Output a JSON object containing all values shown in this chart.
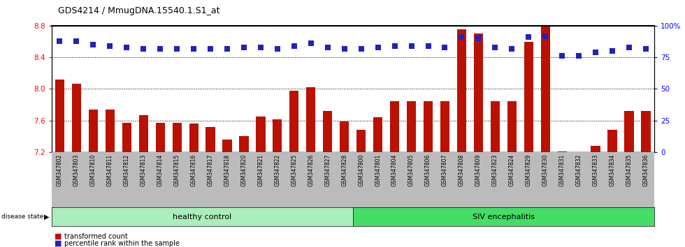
{
  "title": "GDS4214 / MmugDNA.15540.1.S1_at",
  "samples": [
    "GSM347802",
    "GSM347803",
    "GSM347810",
    "GSM347811",
    "GSM347812",
    "GSM347813",
    "GSM347814",
    "GSM347815",
    "GSM347816",
    "GSM347817",
    "GSM347818",
    "GSM347820",
    "GSM347821",
    "GSM347822",
    "GSM347825",
    "GSM347826",
    "GSM347827",
    "GSM347828",
    "GSM347800",
    "GSM347801",
    "GSM347804",
    "GSM347805",
    "GSM347806",
    "GSM347807",
    "GSM347808",
    "GSM347809",
    "GSM347823",
    "GSM347824",
    "GSM347829",
    "GSM347830",
    "GSM347831",
    "GSM347832",
    "GSM347833",
    "GSM347834",
    "GSM347835",
    "GSM347836"
  ],
  "bar_values": [
    8.12,
    8.07,
    7.74,
    7.74,
    7.57,
    7.67,
    7.57,
    7.57,
    7.56,
    7.52,
    7.36,
    7.4,
    7.65,
    7.61,
    7.98,
    8.02,
    7.72,
    7.59,
    7.48,
    7.64,
    7.84,
    7.84,
    7.84,
    7.84,
    8.76,
    8.7,
    7.84,
    7.84,
    8.6,
    8.8,
    7.21,
    7.2,
    7.28,
    7.48,
    7.72,
    7.72
  ],
  "percentile_values": [
    88,
    88,
    85,
    84,
    83,
    82,
    82,
    82,
    82,
    82,
    82,
    83,
    83,
    82,
    84,
    86,
    83,
    82,
    82,
    83,
    84,
    84,
    84,
    83,
    91,
    90,
    83,
    82,
    91,
    92,
    76,
    76,
    79,
    80,
    83,
    82
  ],
  "healthy_count": 18,
  "bar_color": "#bb1100",
  "dot_color": "#2222bb",
  "ylim_left": [
    7.2,
    8.8
  ],
  "ylim_right": [
    0,
    100
  ],
  "yticks_left": [
    7.2,
    7.6,
    8.0,
    8.4,
    8.8
  ],
  "yticks_right": [
    0,
    25,
    50,
    75,
    100
  ],
  "grid_values": [
    7.6,
    8.0,
    8.4
  ],
  "healthy_label": "healthy control",
  "siv_label": "SIV encephalitis",
  "disease_state_label": "disease state",
  "legend_bar_label": "transformed count",
  "legend_dot_label": "percentile rank within the sample",
  "healthy_color": "#aaeebb",
  "siv_color": "#44dd66",
  "label_bg_color": "#bbbbbb"
}
